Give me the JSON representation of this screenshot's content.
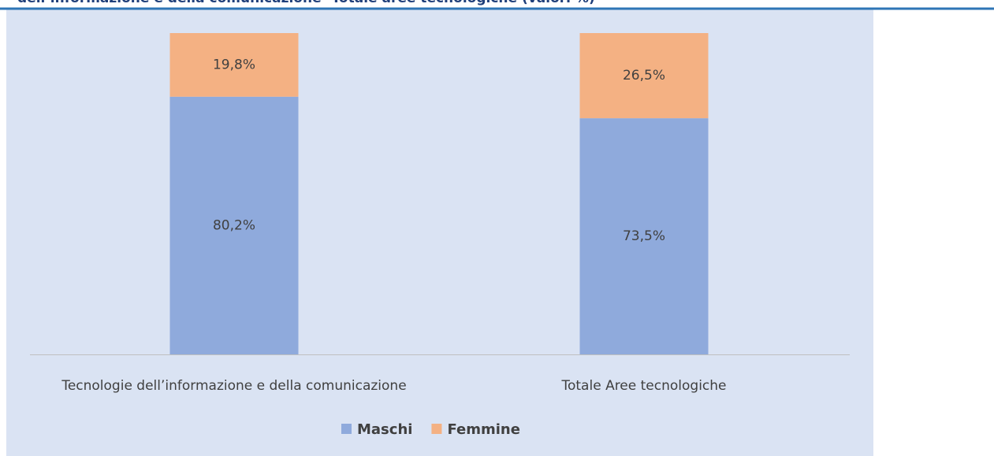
{
  "chart_data": {
    "type": "stacked_bar",
    "title": "dell’informazione e della comunicazione- Totale aree tecnologiche (valori %)",
    "categories": [
      "Tecnologie dell’informazione e della comunicazione",
      "Totale Aree tecnologiche"
    ],
    "series": [
      {
        "name": "Maschi",
        "color": "#8faadc",
        "values": [
          80.2,
          73.5
        ],
        "value_labels": [
          "80,2%",
          "73,5%"
        ]
      },
      {
        "name": "Femmine",
        "color": "#f4b183",
        "values": [
          19.8,
          26.5
        ],
        "value_labels": [
          "19,8%",
          "26,5%"
        ]
      }
    ],
    "legend": "bottom"
  }
}
